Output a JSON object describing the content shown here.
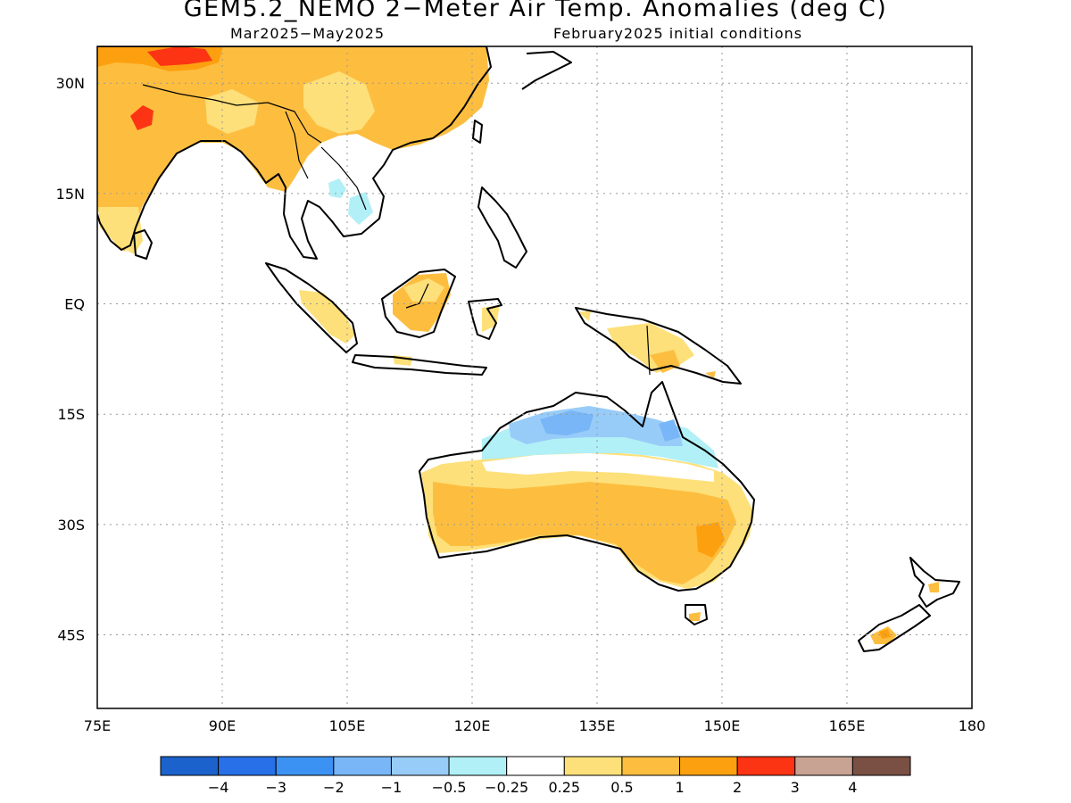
{
  "title": "GEM5.2_NEMO 2−Meter Air Temp. Anomalies (deg C)",
  "subtitle_left": "Mar2025−May2025",
  "subtitle_right": "February2025 initial conditions",
  "map": {
    "lon_labels": [
      "75E",
      "90E",
      "105E",
      "120E",
      "135E",
      "150E",
      "165E",
      "180"
    ],
    "lat_labels": [
      "30N",
      "15N",
      "EQ",
      "15S",
      "30S",
      "45S"
    ],
    "lon_values": [
      75,
      90,
      105,
      120,
      135,
      150,
      165,
      180
    ],
    "lat_values": [
      30,
      15,
      0,
      -15,
      -30,
      -45
    ],
    "lon_range": [
      75,
      180
    ],
    "lat_range": [
      -55,
      35
    ],
    "grid": "dotted"
  },
  "legend": {
    "colors": [
      "#1c62cc",
      "#2870e8",
      "#3c92f2",
      "#78b6f8",
      "#98ccf8",
      "#b0f0f6",
      "#ffffff",
      "#fde07a",
      "#fdbe40",
      "#fda010",
      "#fc3414",
      "#c8a292",
      "#7a5044"
    ],
    "labels": [
      "−4",
      "−3",
      "−2",
      "−1",
      "−0.5",
      "−0.25",
      "0.25",
      "0.5",
      "1",
      "2",
      "3",
      "4"
    ]
  },
  "colors": {
    "warm_light": "#fde07a",
    "warm_mid": "#fdbe40",
    "warm_strong": "#fda010",
    "hot": "#fc3414",
    "cool_light": "#b0f0f6",
    "cool_mid": "#98ccf8",
    "cool_strong": "#78b6f8"
  }
}
